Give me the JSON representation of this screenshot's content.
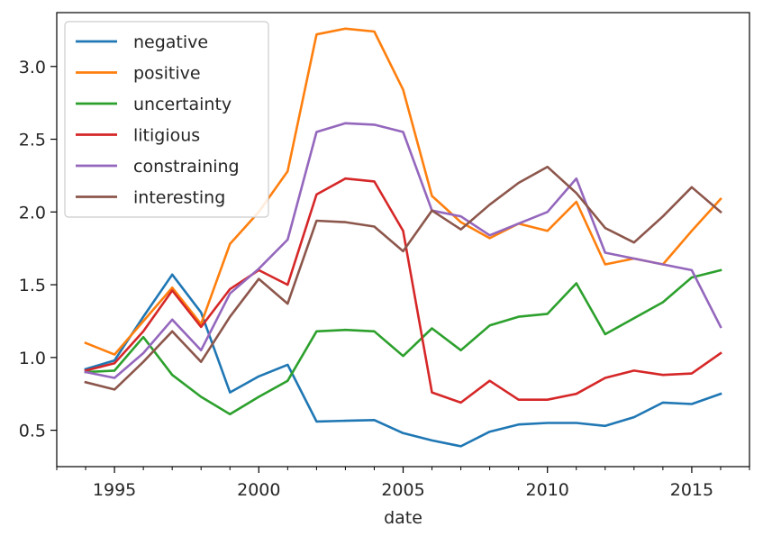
{
  "chart_data": {
    "type": "line",
    "xlabel": "date",
    "ylabel": "",
    "xlim": [
      1993.0,
      2017.0
    ],
    "ylim": [
      0.25,
      3.37
    ],
    "x_ticks": [
      1995,
      2000,
      2005,
      2010,
      2015
    ],
    "x_minor_ticks": [
      1993,
      1994,
      1996,
      1997,
      1998,
      1999,
      2001,
      2002,
      2003,
      2004,
      2006,
      2007,
      2008,
      2009,
      2011,
      2012,
      2013,
      2014,
      2016,
      2017
    ],
    "y_ticks": [
      0.5,
      1.0,
      1.5,
      2.0,
      2.5,
      3.0
    ],
    "x_tick_labels": [
      "1995",
      "2000",
      "2005",
      "2010",
      "2015"
    ],
    "y_tick_labels": [
      "0.5",
      "1.0",
      "1.5",
      "2.0",
      "2.5",
      "3.0"
    ],
    "grid": false,
    "legend_position": "top-left",
    "x": [
      1994,
      1995,
      1996,
      1997,
      1998,
      1999,
      2000,
      2001,
      2002,
      2003,
      2004,
      2005,
      2006,
      2007,
      2008,
      2009,
      2010,
      2011,
      2012,
      2013,
      2014,
      2015,
      2016
    ],
    "series": [
      {
        "name": "negative",
        "color": "#1f77b4",
        "values": [
          0.92,
          0.98,
          1.28,
          1.57,
          1.31,
          0.76,
          0.87,
          0.95,
          0.56,
          0.565,
          0.57,
          0.48,
          0.43,
          0.39,
          0.49,
          0.54,
          0.55,
          0.55,
          0.53,
          0.59,
          0.69,
          0.68,
          0.75
        ]
      },
      {
        "name": "positive",
        "color": "#ff7f0e",
        "values": [
          1.1,
          1.02,
          1.25,
          1.48,
          1.23,
          1.78,
          2.0,
          2.28,
          3.22,
          3.26,
          3.24,
          2.84,
          2.11,
          1.93,
          1.82,
          1.92,
          1.87,
          2.07,
          1.64,
          1.68,
          1.64,
          1.87,
          2.09
        ]
      },
      {
        "name": "uncertainty",
        "color": "#2ca02c",
        "values": [
          0.9,
          0.91,
          1.14,
          0.88,
          0.73,
          0.61,
          0.73,
          0.84,
          1.18,
          1.19,
          1.18,
          1.01,
          1.2,
          1.05,
          1.22,
          1.28,
          1.3,
          1.51,
          1.16,
          1.27,
          1.38,
          1.55,
          1.6
        ]
      },
      {
        "name": "litigious",
        "color": "#d62728",
        "values": [
          0.91,
          0.96,
          1.18,
          1.46,
          1.21,
          1.47,
          1.6,
          1.5,
          2.12,
          2.23,
          2.21,
          1.87,
          0.76,
          0.69,
          0.84,
          0.71,
          0.71,
          0.75,
          0.86,
          0.91,
          0.88,
          0.89,
          1.03
        ]
      },
      {
        "name": "constraining",
        "color": "#9467bd",
        "values": [
          0.9,
          0.86,
          1.03,
          1.26,
          1.05,
          1.44,
          1.61,
          1.81,
          2.55,
          2.61,
          2.6,
          2.55,
          2.01,
          1.97,
          1.84,
          1.92,
          2.0,
          2.23,
          1.72,
          1.68,
          1.64,
          1.6,
          1.21
        ]
      },
      {
        "name": "interesting",
        "color": "#8c564b",
        "values": [
          0.83,
          0.78,
          0.97,
          1.18,
          0.97,
          1.28,
          1.54,
          1.37,
          1.94,
          1.93,
          1.9,
          1.73,
          2.01,
          1.88,
          2.05,
          2.2,
          2.31,
          2.13,
          1.89,
          1.79,
          1.97,
          2.17,
          2.0
        ]
      }
    ]
  }
}
